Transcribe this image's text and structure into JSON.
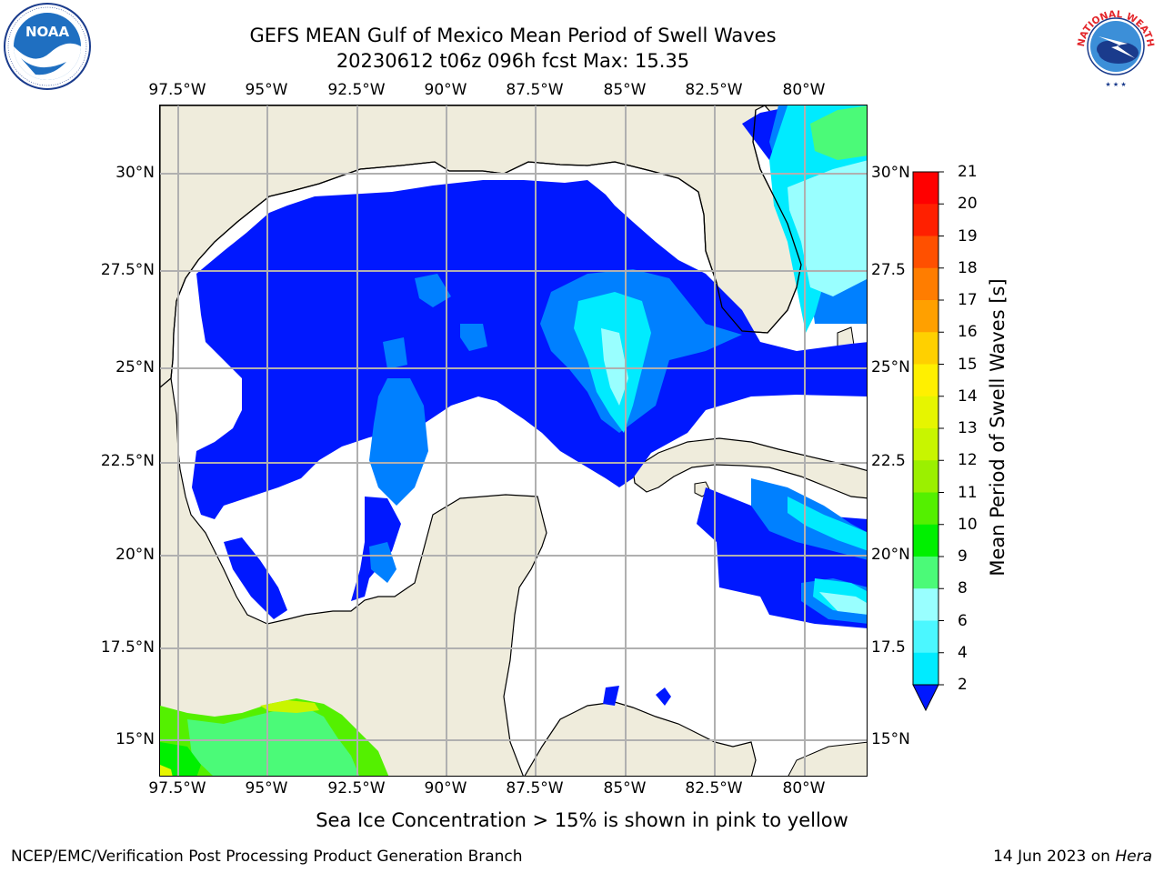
{
  "header": {
    "title_line1": "GEFS MEAN Gulf of Mexico Mean Period of Swell Waves",
    "title_line2": "20230612 t06z 096h fcst   Max: 15.35"
  },
  "logos": {
    "left": {
      "name": "noaa-logo",
      "text": "NOAA"
    },
    "right": {
      "name": "national-weather-service-logo",
      "text": "NATIONAL WEATHER SERVICE"
    }
  },
  "map": {
    "lon_labels": [
      "97.5°W",
      "95°W",
      "92.5°W",
      "90°W",
      "87.5°W",
      "85°W",
      "82.5°W",
      "80°W"
    ],
    "lat_labels_left": [
      "30°N",
      "27.5°N",
      "25°N",
      "22.5°N",
      "20°N",
      "17.5°N",
      "15°N"
    ],
    "lat_labels_right": [
      "30°N",
      "27.5",
      "25°N",
      "22.5",
      "20°N",
      "17.5",
      "15°N"
    ],
    "land_color": "#efecdc",
    "ocean_color": "#ffffff",
    "grid_color": "#b0b0b0"
  },
  "colorbar": {
    "title": "Mean Period of Swell Waves [s]",
    "ticks": [
      "2",
      "4",
      "6",
      "8",
      "9",
      "10",
      "11",
      "12",
      "13",
      "14",
      "15",
      "16",
      "17",
      "18",
      "19",
      "20",
      "21"
    ],
    "colors": [
      "#0018ff",
      "#0080ff",
      "#00ebff",
      "#4bf7ff",
      "#99ffff",
      "#4bfa78",
      "#00f000",
      "#54f000",
      "#9bf000",
      "#c8f500",
      "#e6f500",
      "#fff000",
      "#ffd000",
      "#ffa000",
      "#ff7d00",
      "#ff5000",
      "#ff2000",
      "#ff0000"
    ]
  },
  "caption": "Sea Ice Concentration > 15% is shown in pink to yellow",
  "footer": {
    "left": "NCEP/EMC/Verification Post Processing Product Generation Branch",
    "date": "14 Jun 2023 on ",
    "host": "Hera"
  }
}
